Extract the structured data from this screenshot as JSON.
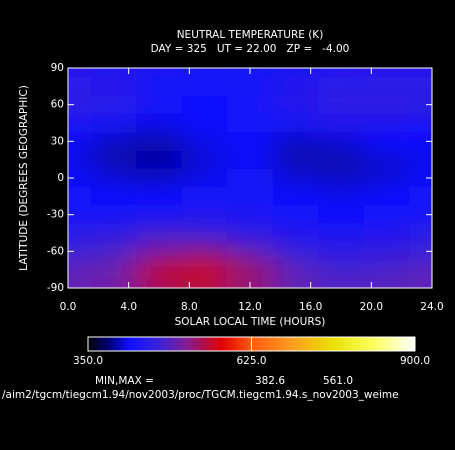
{
  "chart_data": {
    "type": "heatmap",
    "title": "NEUTRAL TEMPERATURE (K)",
    "subtitle": "DAY = 325   UT = 22.00   ZP =   -4.00",
    "xlabel": "SOLAR LOCAL TIME (HOURS)",
    "ylabel": "LATITUDE (DEGREES GEOGRAPHIC)",
    "x": [
      0,
      3,
      6,
      9,
      12,
      15,
      18,
      21,
      24
    ],
    "y": [
      90,
      75,
      60,
      45,
      30,
      15,
      0,
      -15,
      -30,
      -45,
      -60,
      -75,
      -90
    ],
    "z": [
      [
        445,
        440,
        435,
        430,
        430,
        435,
        440,
        445,
        445
      ],
      [
        450,
        445,
        430,
        425,
        430,
        440,
        450,
        450,
        450
      ],
      [
        455,
        450,
        425,
        420,
        425,
        445,
        455,
        455,
        455
      ],
      [
        435,
        430,
        415,
        420,
        425,
        430,
        440,
        440,
        435
      ],
      [
        420,
        405,
        400,
        415,
        420,
        405,
        410,
        420,
        420
      ],
      [
        415,
        400,
        395,
        410,
        420,
        400,
        400,
        410,
        415
      ],
      [
        420,
        410,
        405,
        415,
        425,
        410,
        405,
        410,
        420
      ],
      [
        425,
        420,
        420,
        425,
        430,
        420,
        415,
        420,
        425
      ],
      [
        430,
        430,
        435,
        440,
        435,
        425,
        420,
        425,
        430
      ],
      [
        450,
        455,
        475,
        470,
        455,
        440,
        435,
        440,
        450
      ],
      [
        470,
        480,
        510,
        520,
        495,
        465,
        455,
        460,
        470
      ],
      [
        490,
        500,
        550,
        560,
        530,
        490,
        475,
        480,
        490
      ],
      [
        495,
        505,
        540,
        550,
        525,
        495,
        485,
        490,
        495
      ]
    ],
    "xlim": [
      0,
      24
    ],
    "xticks": [
      {
        "value": 0,
        "label": "0.0"
      },
      {
        "value": 4,
        "label": "4.0"
      },
      {
        "value": 8,
        "label": "8.0"
      },
      {
        "value": 12,
        "label": "12.0"
      },
      {
        "value": 16,
        "label": "16.0"
      },
      {
        "value": 20,
        "label": "20.0"
      },
      {
        "value": 24,
        "label": "24.0"
      }
    ],
    "ylim": [
      -90,
      90
    ],
    "yticks": [
      90,
      60,
      30,
      0,
      -30,
      -60,
      -90
    ],
    "colorscale": [
      [
        350,
        "#000000"
      ],
      [
        385,
        "#00007a"
      ],
      [
        420,
        "#1010ff"
      ],
      [
        470,
        "#3a22d8"
      ],
      [
        510,
        "#7a1fa0"
      ],
      [
        575,
        "#e00000"
      ],
      [
        625,
        "#ff5a10"
      ],
      [
        690,
        "#ff9a20"
      ],
      [
        760,
        "#e8e000"
      ],
      [
        830,
        "#ffff60"
      ],
      [
        900,
        "#ffffff"
      ]
    ],
    "clim": [
      350,
      900
    ],
    "cticks": [
      {
        "value": 350,
        "label": "350.0"
      },
      {
        "value": 625,
        "label": "625.0"
      },
      {
        "value": 900,
        "label": "900.0"
      }
    ],
    "stats": {
      "label": "MIN,MAX =",
      "values": [
        382.6,
        561.0
      ],
      "value_labels": [
        "382.6",
        "561.0"
      ]
    },
    "file": "/aim2/tgcm/tiegcm1.94/nov2003/proc/TGCM.tiegcm1.94.s_nov2003_weime"
  }
}
